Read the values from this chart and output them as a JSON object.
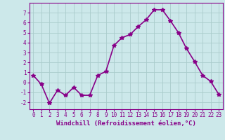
{
  "x": [
    0,
    1,
    2,
    3,
    4,
    5,
    6,
    7,
    8,
    9,
    10,
    11,
    12,
    13,
    14,
    15,
    16,
    17,
    18,
    19,
    20,
    21,
    22,
    23
  ],
  "y": [
    0.7,
    -0.2,
    -2.1,
    -0.8,
    -1.3,
    -0.5,
    -1.3,
    -1.3,
    0.7,
    1.1,
    3.7,
    4.5,
    4.8,
    5.6,
    6.3,
    7.3,
    7.3,
    6.2,
    5.0,
    3.4,
    2.1,
    0.7,
    0.1,
    -1.2
  ],
  "line_color": "#880088",
  "marker": "*",
  "marker_size": 4,
  "bg_color": "#cce8ea",
  "grid_color": "#aacccc",
  "xlabel": "Windchill (Refroidissement éolien,°C)",
  "xlabel_color": "#880088",
  "ylabel_ticks": [
    -2,
    -1,
    0,
    1,
    2,
    3,
    4,
    5,
    6,
    7
  ],
  "xlim": [
    -0.5,
    23.5
  ],
  "ylim": [
    -2.7,
    8.0
  ],
  "xtick_labels": [
    "0",
    "1",
    "2",
    "3",
    "4",
    "5",
    "6",
    "7",
    "8",
    "9",
    "10",
    "11",
    "12",
    "13",
    "14",
    "15",
    "16",
    "17",
    "18",
    "19",
    "20",
    "21",
    "22",
    "23"
  ],
  "axis_color": "#880088",
  "tick_color": "#880088",
  "label_fontsize": 6.5,
  "tick_fontsize": 5.5,
  "line_width": 1.2
}
